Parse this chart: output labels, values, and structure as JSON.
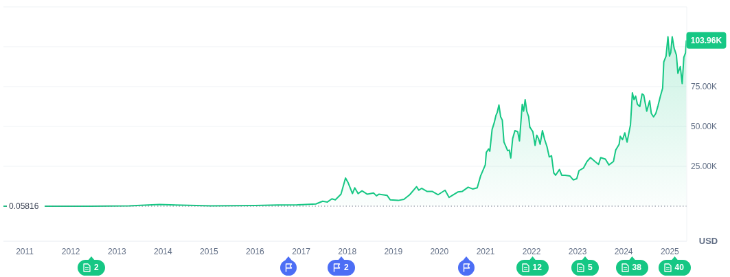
{
  "chart_data": {
    "type": "area",
    "color": "#16c784",
    "x": [
      "2010-07-16",
      "2011-06-08",
      "2012-06-01",
      "2013-04-09",
      "2013-12-04",
      "2014-06-01",
      "2015-01-14",
      "2016-01-01",
      "2016-07-01",
      "2016-12-01",
      "2017-01-08",
      "2017-04-27",
      "2017-06-20",
      "2017-07-27",
      "2017-09-01",
      "2017-09-28",
      "2017-11-12",
      "2017-12-18",
      "2018-01-06",
      "2018-01-24",
      "2018-02-11",
      "2018-03-01",
      "2018-03-28",
      "2018-04-28",
      "2018-06-09",
      "2018-07-28",
      "2018-08-20",
      "2018-09-08",
      "2018-11-12",
      "2018-12-07",
      "2019-02-09",
      "2019-03-26",
      "2019-05-11",
      "2019-07-04",
      "2019-07-22",
      "2019-08-13",
      "2019-09-24",
      "2019-11-07",
      "2019-12-22",
      "2020-02-15",
      "2020-03-18",
      "2020-05-26",
      "2020-07-01",
      "2020-08-16",
      "2020-09-21",
      "2020-10-27",
      "2020-11-23",
      "2020-12-30",
      "2021-01-07",
      "2021-01-26",
      "2021-02-04",
      "2021-02-22",
      "2021-03-11",
      "2021-03-24",
      "2021-04-04",
      "2021-04-17",
      "2021-05-01",
      "2021-05-14",
      "2021-05-27",
      "2021-06-16",
      "2021-06-25",
      "2021-07-08",
      "2021-07-20",
      "2021-08-04",
      "2021-08-22",
      "2021-09-13",
      "2021-09-27",
      "2021-10-19",
      "2021-10-30",
      "2021-11-11",
      "2021-11-24",
      "2021-12-09",
      "2021-12-18",
      "2022-01-11",
      "2022-01-29",
      "2022-02-11",
      "2022-02-25",
      "2022-03-10",
      "2022-03-28",
      "2022-04-15",
      "2022-05-03",
      "2022-05-21",
      "2022-06-08",
      "2022-06-26",
      "2022-07-10",
      "2022-08-10",
      "2022-08-28",
      "2022-09-24",
      "2022-10-31",
      "2022-11-27",
      "2022-12-25",
      "2023-01-12",
      "2023-02-17",
      "2023-03-16",
      "2023-04-13",
      "2023-05-19",
      "2023-06-16",
      "2023-07-03",
      "2023-08-09",
      "2023-09-06",
      "2023-10-12",
      "2023-10-30",
      "2023-11-26",
      "2023-12-05",
      "2023-12-23",
      "2024-01-10",
      "2024-01-28",
      "2024-02-24",
      "2024-03-10",
      "2024-03-23",
      "2024-04-05",
      "2024-04-19",
      "2024-05-08",
      "2024-05-26",
      "2024-06-08",
      "2024-07-02",
      "2024-07-25",
      "2024-08-07",
      "2024-08-25",
      "2024-09-12",
      "2024-09-30",
      "2024-10-18",
      "2024-11-05",
      "2024-11-14",
      "2024-12-02",
      "2024-12-17",
      "2024-12-29",
      "2025-01-08",
      "2025-01-20",
      "2025-02-04",
      "2025-02-22",
      "2025-03-06",
      "2025-03-25",
      "2025-04-09",
      "2025-04-22",
      "2025-05-06",
      "2025-05-12"
    ],
    "values": [
      0.05816,
      0,
      0,
      200,
      1100,
      600,
      200,
      400,
      700,
      800,
      1000,
      1400,
      3100,
      2600,
      4600,
      4000,
      7500,
      17700,
      15000,
      11500,
      7900,
      11500,
      7900,
      9600,
      7500,
      8300,
      6500,
      7500,
      6800,
      4000,
      3600,
      4300,
      7200,
      12200,
      10000,
      11200,
      9300,
      9200,
      7200,
      10000,
      5500,
      8900,
      9300,
      11900,
      10800,
      11500,
      19000,
      25900,
      33800,
      35900,
      34500,
      48100,
      52400,
      56800,
      58900,
      63500,
      56000,
      53900,
      40200,
      36600,
      34800,
      35200,
      30200,
      42400,
      47400,
      46700,
      40900,
      63900,
      59600,
      66800,
      59600,
      56000,
      49600,
      46700,
      38100,
      44500,
      42400,
      38800,
      47400,
      41700,
      37400,
      30900,
      31600,
      20800,
      19400,
      23000,
      19400,
      19400,
      19000,
      16500,
      17200,
      22300,
      24000,
      28000,
      30500,
      28000,
      26200,
      30500,
      29500,
      25900,
      28000,
      35200,
      38800,
      43800,
      41700,
      46000,
      40200,
      51000,
      71100,
      66800,
      69000,
      63900,
      62500,
      70400,
      69700,
      59600,
      66100,
      58200,
      56000,
      58200,
      63200,
      69000,
      74000,
      90500,
      94100,
      106300,
      94100,
      96300,
      106300,
      99100,
      94800,
      83300,
      87600,
      76900,
      93400,
      96300,
      103960
    ],
    "xlim": [
      "2010-07-16",
      "2025-05-15"
    ],
    "xticks": [
      "2011",
      "2012",
      "2013",
      "2014",
      "2015",
      "2016",
      "2017",
      "2018",
      "2019",
      "2020",
      "2021",
      "2022",
      "2023",
      "2024",
      "2025"
    ],
    "ylim": [
      -22000,
      125000
    ],
    "yticks": [
      {
        "value": 25000,
        "label": "25.00K"
      },
      {
        "value": 50000,
        "label": "50.00K"
      },
      {
        "value": 75000,
        "label": "75.00K"
      },
      {
        "value": 100000,
        "label": null
      },
      {
        "value": 125000,
        "label": null
      }
    ],
    "ylabel": "USD",
    "grid": "y",
    "ref_lines": [
      {
        "axis": "y",
        "value": 0.05816,
        "label": "0.05816",
        "color": "#6b7385",
        "line_style": "dotted"
      }
    ],
    "annotations": [
      {
        "text": "103.96K",
        "x": "2025-05-12",
        "y": 103960
      },
      "2",
      "2",
      "12",
      "5",
      "38",
      "40"
    ]
  }
}
